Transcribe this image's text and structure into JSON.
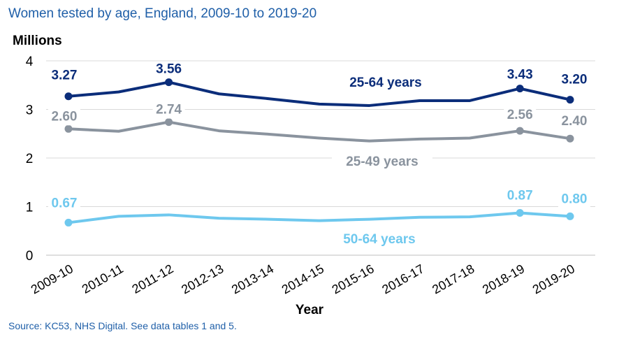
{
  "title": "Women tested by age, England, 2009-10 to 2019-20",
  "source": "Source: KC53, NHS Digital. See data tables 1 and 5.",
  "chart_data": {
    "type": "line",
    "ylabel": "Millions",
    "xlabel": "Year",
    "ylim": [
      0,
      4
    ],
    "yticks": [
      0,
      1,
      2,
      3,
      4
    ],
    "grid": true,
    "categories": [
      "2009-10",
      "2010-11",
      "2011-12",
      "2012-13",
      "2013-14",
      "2014-15",
      "2015-16",
      "2016-17",
      "2017-18",
      "2018-19",
      "2019-20"
    ],
    "series": [
      {
        "name": "25-64 years",
        "color": "#0b2d7a",
        "values": [
          3.27,
          3.36,
          3.56,
          3.32,
          3.22,
          3.11,
          3.08,
          3.18,
          3.18,
          3.43,
          3.2
        ],
        "point_labels": [
          {
            "index": 0,
            "text": "3.27"
          },
          {
            "index": 2,
            "text": "3.56"
          },
          {
            "index": 9,
            "text": "3.43"
          },
          {
            "index": 10,
            "text": "3.20"
          }
        ]
      },
      {
        "name": "25-49 years",
        "color": "#8a939e",
        "values": [
          2.6,
          2.55,
          2.74,
          2.56,
          2.49,
          2.41,
          2.35,
          2.39,
          2.41,
          2.56,
          2.4
        ],
        "point_labels": [
          {
            "index": 0,
            "text": "2.60"
          },
          {
            "index": 2,
            "text": "2.74"
          },
          {
            "index": 9,
            "text": "2.56"
          },
          {
            "index": 10,
            "text": "2.40"
          }
        ]
      },
      {
        "name": "50-64 years",
        "color": "#6ec8ee",
        "values": [
          0.67,
          0.8,
          0.83,
          0.76,
          0.74,
          0.71,
          0.74,
          0.78,
          0.79,
          0.87,
          0.8
        ],
        "point_labels": [
          {
            "index": 0,
            "text": "0.67"
          },
          {
            "index": 9,
            "text": "0.87"
          },
          {
            "index": 10,
            "text": "0.80"
          }
        ]
      }
    ]
  }
}
